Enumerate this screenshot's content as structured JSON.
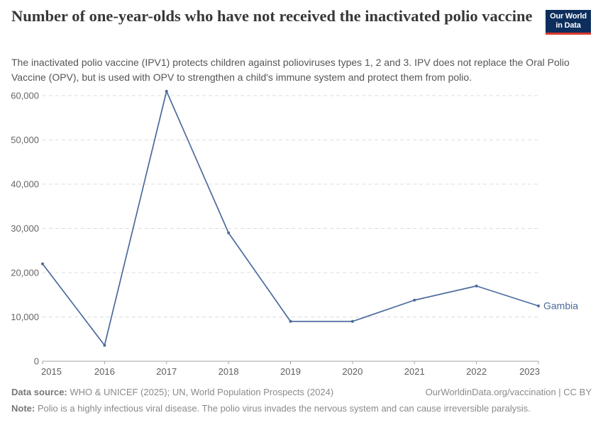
{
  "header": {
    "title": "Number of one-year-olds who have not received the inactivated polio vaccine",
    "subtitle": "The inactivated polio vaccine (IPV1) protects children against polioviruses types 1, 2 and 3. IPV does not replace the Oral Polio Vaccine (OPV), but is used with OPV to strengthen a child's immune system and protect them from polio.",
    "logo": {
      "line1": "Our World",
      "line2": "in Data",
      "bg_color": "#0d2e5c",
      "accent_color": "#d93a2d"
    }
  },
  "chart_data": {
    "type": "line",
    "title": "Number of one-year-olds who have not received the inactivated polio vaccine",
    "xlabel": "",
    "ylabel": "",
    "x": [
      2015,
      2016,
      2017,
      2018,
      2019,
      2020,
      2021,
      2022,
      2023
    ],
    "series": [
      {
        "name": "Gambia",
        "color": "#4c6a9c",
        "values": [
          22000,
          3600,
          61000,
          29000,
          9000,
          9000,
          13800,
          17000,
          12500
        ]
      }
    ],
    "end_label": "Gambia",
    "y_ticks": [
      0,
      10000,
      20000,
      30000,
      40000,
      50000,
      60000
    ],
    "ylim": [
      0,
      61000
    ],
    "grid": "horizontal-dashed",
    "legend_position": "end-of-line",
    "colors": {
      "gridline": "#dcdcdc",
      "axis": "#a3a3a3",
      "tick_label": "#666666"
    }
  },
  "footer": {
    "data_source_label": "Data source:",
    "data_source": "WHO & UNICEF (2025); UN, World Population Prospects (2024)",
    "link": "OurWorldinData.org/vaccination | CC BY",
    "note_label": "Note:",
    "note": "Polio is a highly infectious viral disease. The polio virus invades the nervous system and can cause irreversible paralysis."
  }
}
